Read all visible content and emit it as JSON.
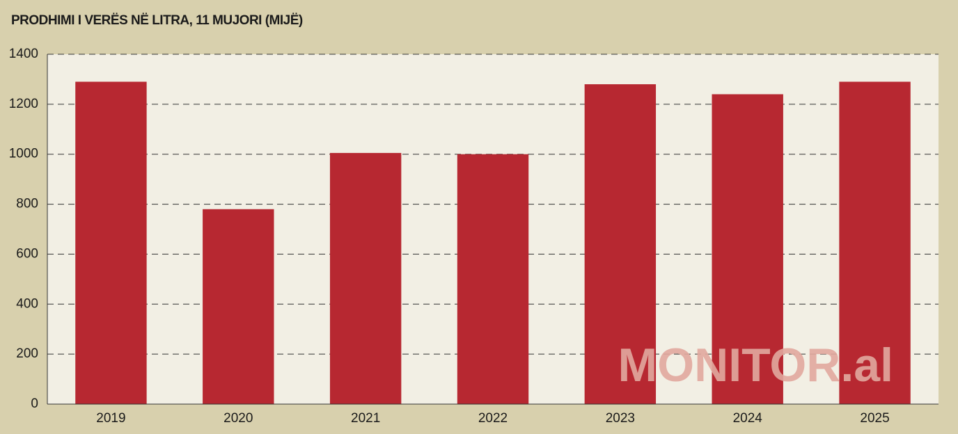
{
  "chart_data": {
    "type": "bar",
    "title": "PRODHIMI I VERËS NË LITRA, 11 MUJORI (MIJË)",
    "watermark": "MONITOR.al",
    "categories": [
      "2019",
      "2020",
      "2021",
      "2022",
      "2023",
      "2024",
      "2025"
    ],
    "values": [
      1290,
      780,
      1005,
      1000,
      1280,
      1240,
      1290
    ],
    "color": "#b72831",
    "ylim": [
      0,
      1400
    ],
    "yticks": [
      0,
      200,
      400,
      600,
      800,
      1000,
      1200,
      1400
    ],
    "grid": true
  }
}
